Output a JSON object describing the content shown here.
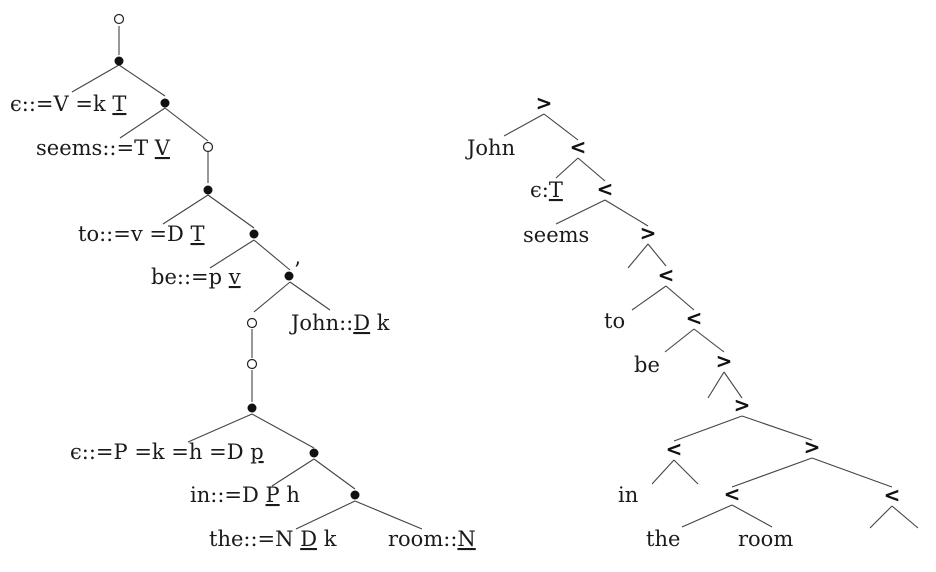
{
  "left_tree": {
    "labels": {
      "eps_vk": [
        "ϵ::=V =k ",
        "T"
      ],
      "seems": [
        "seems::=T ",
        "V"
      ],
      "to": [
        "to::=v =D ",
        "T"
      ],
      "be": [
        "be::=p ",
        "v"
      ],
      "john": [
        "John::",
        "D",
        " k"
      ],
      "eps_pk": [
        "ϵ::=P =k =h =D ",
        "p"
      ],
      "in": [
        "in::=D ",
        "P",
        " h"
      ],
      "the": [
        "the::=N ",
        "D",
        " k"
      ],
      "room": [
        "room::",
        "N"
      ]
    },
    "prime_mark": "’"
  },
  "right_tree": {
    "words": {
      "john": "John",
      "eps": "ϵ:",
      "eps_cat": "T",
      "seems": "seems",
      "to": "to",
      "be": "be",
      "in": "in",
      "the": "the",
      "room": "room"
    },
    "projections": {
      "r1": ">",
      "r2": "<",
      "r3": "<",
      "r4": ">",
      "r5": "<",
      "r6": "<",
      "r7": ">",
      "r8": ">",
      "r9": "<",
      "r10": ">",
      "r11": "<",
      "r12": "<"
    }
  }
}
